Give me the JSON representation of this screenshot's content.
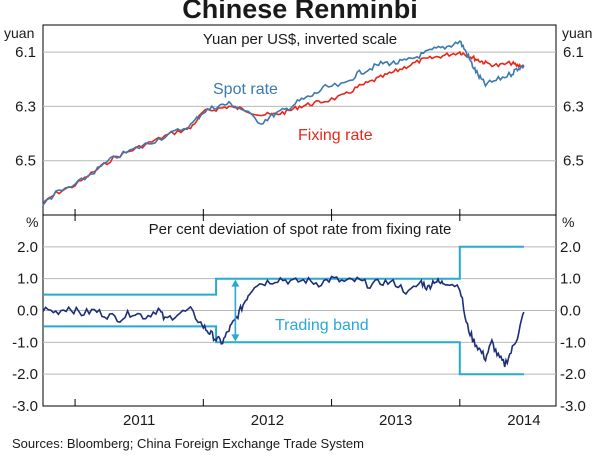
{
  "title": "Chinese Renminbi",
  "source": "Sources:  Bloomberg; China Foreign Exchange Trade System",
  "colors": {
    "spot": "#3a7ab0",
    "fixing": "#e8271a",
    "deviation": "#1e2e78",
    "band": "#29a8d4",
    "arrow": "#29a8d4"
  },
  "x_axis": {
    "labels": [
      "2011",
      "2012",
      "2013",
      "2014"
    ],
    "range": [
      2010.75,
      2014.75
    ]
  },
  "chart_data": [
    {
      "type": "line",
      "title": "Yuan per US$, inverted scale",
      "unit_left": "yuan",
      "unit_right": "yuan",
      "y_inverted": true,
      "ylim": [
        6.0,
        6.7
      ],
      "yticks": [
        "6.1",
        "6.3",
        "6.5"
      ],
      "ytick_values": [
        6.1,
        6.3,
        6.5
      ],
      "series": [
        {
          "name": "Spot rate",
          "x": [
            2010.75,
            2010.85,
            2011.0,
            2011.15,
            2011.3,
            2011.45,
            2011.6,
            2011.75,
            2011.9,
            2012.0,
            2012.1,
            2012.2,
            2012.3,
            2012.45,
            2012.55,
            2012.65,
            2012.75,
            2012.85,
            2012.95,
            2013.1,
            2013.2,
            2013.3,
            2013.4,
            2013.5,
            2013.6,
            2013.7,
            2013.8,
            2013.9,
            2014.0,
            2014.05,
            2014.1,
            2014.15,
            2014.2,
            2014.3,
            2014.4,
            2014.45,
            2014.5
          ],
          "values": [
            6.66,
            6.62,
            6.59,
            6.54,
            6.49,
            6.46,
            6.43,
            6.4,
            6.37,
            6.32,
            6.3,
            6.29,
            6.31,
            6.36,
            6.33,
            6.31,
            6.28,
            6.26,
            6.23,
            6.22,
            6.18,
            6.16,
            6.14,
            6.14,
            6.13,
            6.11,
            6.09,
            6.08,
            6.06,
            6.1,
            6.15,
            6.19,
            6.22,
            6.2,
            6.18,
            6.16,
            6.15
          ]
        },
        {
          "name": "Fixing rate",
          "x": [
            2010.75,
            2010.85,
            2011.0,
            2011.15,
            2011.3,
            2011.45,
            2011.6,
            2011.75,
            2011.9,
            2012.0,
            2012.1,
            2012.2,
            2012.3,
            2012.45,
            2012.55,
            2012.65,
            2012.75,
            2012.85,
            2012.95,
            2013.1,
            2013.2,
            2013.3,
            2013.4,
            2013.5,
            2013.6,
            2013.7,
            2013.8,
            2013.9,
            2014.0,
            2014.05,
            2014.1,
            2014.15,
            2014.2,
            2014.3,
            2014.4,
            2014.45,
            2014.5
          ],
          "values": [
            6.66,
            6.62,
            6.59,
            6.54,
            6.49,
            6.46,
            6.43,
            6.4,
            6.38,
            6.32,
            6.31,
            6.3,
            6.31,
            6.33,
            6.33,
            6.32,
            6.3,
            6.29,
            6.28,
            6.26,
            6.23,
            6.21,
            6.19,
            6.17,
            6.15,
            6.13,
            6.12,
            6.11,
            6.1,
            6.11,
            6.12,
            6.13,
            6.14,
            6.15,
            6.14,
            6.15,
            6.15
          ]
        }
      ],
      "annotations": [
        "Spot rate",
        "Fixing rate"
      ]
    },
    {
      "type": "line",
      "title": "Per cent deviation of spot rate from fixing rate",
      "unit_left": "%",
      "unit_right": "%",
      "ylim": [
        -3.0,
        3.0
      ],
      "yticks": [
        "2.0",
        "1.0",
        "0.0",
        "-1.0",
        "-2.0",
        "-3.0"
      ],
      "ytick_values": [
        2.0,
        1.0,
        0.0,
        -1.0,
        -2.0,
        -3.0
      ],
      "series": [
        {
          "name": "Deviation",
          "x": [
            2010.75,
            2010.85,
            2010.95,
            2011.05,
            2011.15,
            2011.25,
            2011.35,
            2011.45,
            2011.55,
            2011.65,
            2011.7,
            2011.8,
            2011.9,
            2012.0,
            2012.05,
            2012.1,
            2012.15,
            2012.2,
            2012.25,
            2012.3,
            2012.35,
            2012.4,
            2012.5,
            2012.6,
            2012.7,
            2012.8,
            2012.9,
            2013.0,
            2013.1,
            2013.2,
            2013.3,
            2013.4,
            2013.5,
            2013.6,
            2013.7,
            2013.75,
            2013.8,
            2013.85,
            2013.9,
            2014.0,
            2014.05,
            2014.1,
            2014.15,
            2014.2,
            2014.25,
            2014.3,
            2014.35,
            2014.4,
            2014.45,
            2014.5
          ],
          "values": [
            0.05,
            -0.05,
            0.1,
            -0.1,
            0.0,
            -0.15,
            -0.25,
            -0.05,
            -0.2,
            0.05,
            -0.3,
            -0.1,
            0.0,
            -0.5,
            -0.7,
            -0.9,
            -1.0,
            -0.6,
            -0.3,
            0.1,
            0.5,
            0.8,
            0.9,
            1.0,
            0.9,
            0.95,
            0.85,
            1.0,
            0.9,
            0.95,
            0.8,
            0.9,
            0.85,
            0.55,
            0.9,
            0.7,
            0.95,
            0.85,
            0.9,
            0.75,
            -0.4,
            -0.9,
            -1.2,
            -1.5,
            -1.0,
            -1.45,
            -1.7,
            -1.3,
            -0.8,
            -0.05
          ]
        },
        {
          "name": "Trading band upper",
          "x": [
            2010.75,
            2012.1,
            2012.1,
            2014.0,
            2014.0,
            2014.5
          ],
          "values": [
            0.5,
            0.5,
            1.0,
            1.0,
            2.0,
            2.0
          ]
        },
        {
          "name": "Trading band lower",
          "x": [
            2010.75,
            2012.1,
            2012.1,
            2014.0,
            2014.0,
            2014.5
          ],
          "values": [
            -0.5,
            -0.5,
            -1.0,
            -1.0,
            -2.0,
            -2.0
          ]
        }
      ],
      "annotations": [
        "Trading band"
      ]
    }
  ]
}
